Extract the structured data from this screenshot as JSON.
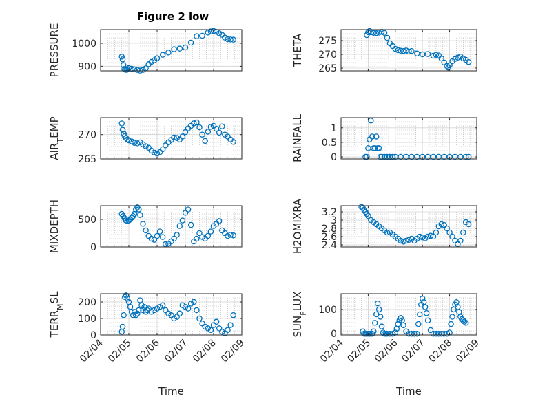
{
  "figure": {
    "title": "Figure 2 low"
  },
  "colors": {
    "marker": "#0072bd",
    "axis": "#262626",
    "grid": "#b0b0b0"
  },
  "chart_data": [
    {
      "type": "scatter",
      "ylabel": "PRESSURE",
      "ylabel_sub": "",
      "ylabel_suffix": "",
      "ylim": [
        880,
        1060
      ],
      "yticks": [
        900,
        1000
      ],
      "ytick_labels": [
        "900",
        "1000"
      ],
      "x": [
        0.75,
        0.78,
        0.81,
        0.84,
        0.88,
        0.92,
        0.96,
        1.0,
        1.1,
        1.2,
        1.3,
        1.4,
        1.5,
        1.6,
        1.7,
        1.8,
        1.9,
        2.0,
        2.2,
        2.4,
        2.6,
        2.8,
        3.0,
        3.2,
        3.4,
        3.6,
        3.8,
        3.9,
        4.0,
        4.1,
        4.2,
        4.3,
        4.4,
        4.5,
        4.6,
        4.7
      ],
      "y": [
        942,
        930,
        905,
        888,
        885,
        884,
        888,
        892,
        889,
        886,
        884,
        881,
        884,
        891,
        909,
        919,
        926,
        935,
        950,
        960,
        974,
        977,
        982,
        1003,
        1031,
        1033,
        1047,
        1052,
        1054,
        1050,
        1044,
        1037,
        1025,
        1018,
        1017,
        1016
      ]
    },
    {
      "type": "scatter",
      "ylabel": "THETA",
      "ylabel_sub": "",
      "ylabel_suffix": "",
      "ylim": [
        264,
        279
      ],
      "yticks": [
        265,
        270,
        275
      ],
      "ytick_labels": [
        "265",
        "270",
        "275"
      ],
      "x": [
        0.95,
        1.0,
        1.05,
        1.1,
        1.2,
        1.3,
        1.4,
        1.5,
        1.6,
        1.7,
        1.8,
        1.9,
        2.0,
        2.1,
        2.2,
        2.3,
        2.4,
        2.5,
        2.6,
        2.8,
        3.0,
        3.2,
        3.4,
        3.5,
        3.6,
        3.7,
        3.8,
        3.9,
        3.95,
        4.0,
        4.1,
        4.2,
        4.3,
        4.4,
        4.5,
        4.6,
        4.7
      ],
      "y": [
        277,
        278,
        278.5,
        278,
        277.8,
        277.7,
        277.9,
        278.2,
        277.8,
        276,
        274,
        273,
        272,
        271.5,
        271.3,
        271.2,
        271.4,
        271,
        271.2,
        270.3,
        270,
        270.1,
        269.5,
        269.8,
        269.6,
        268.5,
        267,
        265.8,
        265.2,
        266,
        267.5,
        268.3,
        268.8,
        269.2,
        268.5,
        268,
        267.2
      ]
    },
    {
      "type": "scatter",
      "ylabel": "AIR",
      "ylabel_sub": "T",
      "ylabel_suffix": "EMP",
      "ylim": [
        265,
        273.5
      ],
      "yticks": [
        265,
        270
      ],
      "ytick_labels": [
        "265",
        "270"
      ],
      "x": [
        0.75,
        0.78,
        0.82,
        0.86,
        0.9,
        0.95,
        1.0,
        1.1,
        1.2,
        1.3,
        1.4,
        1.5,
        1.6,
        1.7,
        1.8,
        1.9,
        2.0,
        2.1,
        2.2,
        2.3,
        2.4,
        2.5,
        2.6,
        2.7,
        2.8,
        2.9,
        3.0,
        3.1,
        3.2,
        3.3,
        3.4,
        3.5,
        3.6,
        3.7,
        3.8,
        3.9,
        4.0,
        4.1,
        4.2,
        4.3,
        4.4,
        4.5,
        4.6,
        4.7
      ],
      "y": [
        272.3,
        271,
        270.2,
        269.7,
        269.3,
        269,
        268.8,
        268.6,
        268.3,
        268.2,
        268.4,
        268,
        267.6,
        267.3,
        266.7,
        266.3,
        266.1,
        266.4,
        267,
        267.8,
        268.4,
        268.9,
        269.4,
        269.3,
        269,
        269.6,
        270.5,
        271.3,
        271.8,
        272.3,
        272.5,
        271.5,
        270,
        268.7,
        270.6,
        271.6,
        271.8,
        271.2,
        270.4,
        271.7,
        270,
        269.6,
        269,
        268.5
      ]
    },
    {
      "type": "scatter",
      "ylabel": "RAINFALL",
      "ylabel_sub": "",
      "ylabel_suffix": "",
      "ylim": [
        -0.07,
        1.35
      ],
      "yticks": [
        0,
        0.5,
        1
      ],
      "ytick_labels": [
        "0",
        "0.5",
        "1"
      ],
      "x": [
        0.9,
        0.95,
        1.0,
        1.05,
        1.1,
        1.15,
        1.2,
        1.25,
        1.3,
        1.35,
        1.4,
        1.45,
        1.5,
        1.6,
        1.7,
        1.8,
        1.9,
        2.0,
        2.2,
        2.4,
        2.6,
        2.8,
        3.0,
        3.2,
        3.4,
        3.6,
        3.8,
        4.0,
        4.2,
        4.4,
        4.6,
        4.7
      ],
      "y": [
        0,
        0,
        0.3,
        0.6,
        1.25,
        0.7,
        0.3,
        0.3,
        0.7,
        0.3,
        0.3,
        0,
        0,
        0,
        0,
        0,
        0,
        0,
        0,
        0,
        0,
        0,
        0,
        0,
        0,
        0,
        0,
        0,
        0,
        0,
        0,
        0
      ]
    },
    {
      "type": "scatter",
      "ylabel": "MIXDEPTH",
      "ylabel_sub": "",
      "ylabel_suffix": "",
      "ylim": [
        0,
        750
      ],
      "yticks": [
        0,
        500
      ],
      "ytick_labels": [
        "0",
        "500"
      ],
      "x": [
        0.75,
        0.8,
        0.85,
        0.9,
        0.95,
        1.0,
        1.05,
        1.1,
        1.15,
        1.2,
        1.25,
        1.3,
        1.35,
        1.4,
        1.5,
        1.6,
        1.7,
        1.8,
        1.9,
        2.0,
        2.1,
        2.2,
        2.3,
        2.4,
        2.5,
        2.6,
        2.7,
        2.8,
        2.9,
        3.0,
        3.1,
        3.2,
        3.3,
        3.4,
        3.5,
        3.6,
        3.7,
        3.8,
        3.9,
        4.0,
        4.1,
        4.2,
        4.3,
        4.4,
        4.5,
        4.6,
        4.7
      ],
      "y": [
        600,
        560,
        520,
        480,
        470,
        480,
        500,
        530,
        560,
        600,
        680,
        720,
        680,
        580,
        420,
        300,
        200,
        150,
        130,
        200,
        280,
        180,
        50,
        60,
        100,
        150,
        220,
        380,
        480,
        620,
        680,
        400,
        100,
        150,
        250,
        180,
        150,
        200,
        280,
        380,
        420,
        470,
        300,
        250,
        200,
        220,
        210
      ]
    },
    {
      "type": "scatter",
      "ylabel": "H2OMIXRA",
      "ylabel_sub": "",
      "ylabel_suffix": "",
      "ylim": [
        2.35,
        3.35
      ],
      "yticks": [
        2.4,
        2.6,
        2.8,
        3,
        3.2
      ],
      "ytick_labels": [
        "2.4",
        "2.6",
        "2.8",
        "3",
        "3.2"
      ],
      "x": [
        0.75,
        0.8,
        0.85,
        0.9,
        0.95,
        1.0,
        1.1,
        1.2,
        1.3,
        1.4,
        1.5,
        1.6,
        1.7,
        1.8,
        1.9,
        2.0,
        2.1,
        2.2,
        2.3,
        2.4,
        2.5,
        2.6,
        2.7,
        2.8,
        2.9,
        3.0,
        3.1,
        3.2,
        3.3,
        3.4,
        3.5,
        3.6,
        3.7,
        3.8,
        3.9,
        4.0,
        4.1,
        4.2,
        4.3,
        4.4,
        4.5,
        4.6,
        4.7
      ],
      "y": [
        3.32,
        3.3,
        3.25,
        3.2,
        3.15,
        3.1,
        3.0,
        2.95,
        2.9,
        2.85,
        2.8,
        2.75,
        2.7,
        2.7,
        2.65,
        2.6,
        2.55,
        2.5,
        2.48,
        2.5,
        2.52,
        2.55,
        2.5,
        2.55,
        2.6,
        2.58,
        2.56,
        2.6,
        2.62,
        2.6,
        2.7,
        2.85,
        2.9,
        2.88,
        2.8,
        2.7,
        2.6,
        2.5,
        2.42,
        2.5,
        2.7,
        2.95,
        2.9
      ]
    },
    {
      "type": "scatter",
      "ylabel": "TERR",
      "ylabel_sub": "M",
      "ylabel_suffix": "SL",
      "ylim": [
        0,
        250
      ],
      "yticks": [
        0,
        100,
        200
      ],
      "ytick_labels": [
        "0",
        "100",
        "200"
      ],
      "x": [
        0.75,
        0.78,
        0.82,
        0.86,
        0.9,
        0.95,
        1.0,
        1.05,
        1.1,
        1.15,
        1.2,
        1.25,
        1.3,
        1.35,
        1.4,
        1.45,
        1.5,
        1.55,
        1.6,
        1.65,
        1.7,
        1.8,
        1.9,
        2.0,
        2.1,
        2.2,
        2.3,
        2.4,
        2.5,
        2.6,
        2.7,
        2.8,
        2.9,
        3.0,
        3.1,
        3.2,
        3.3,
        3.4,
        3.5,
        3.6,
        3.7,
        3.8,
        3.9,
        4.0,
        4.1,
        4.2,
        4.3,
        4.4,
        4.5,
        4.6,
        4.7
      ],
      "y": [
        20,
        50,
        120,
        230,
        240,
        220,
        200,
        170,
        140,
        120,
        140,
        120,
        130,
        150,
        210,
        180,
        150,
        170,
        140,
        150,
        160,
        140,
        150,
        160,
        170,
        180,
        150,
        130,
        120,
        100,
        110,
        130,
        180,
        170,
        160,
        190,
        200,
        150,
        100,
        70,
        50,
        40,
        30,
        60,
        80,
        40,
        20,
        10,
        30,
        60,
        120
      ]
    },
    {
      "type": "scatter",
      "ylabel": "SUN",
      "ylabel_sub": "F",
      "ylabel_suffix": "LUX",
      "ylim": [
        -5,
        165
      ],
      "yticks": [
        0,
        100
      ],
      "ytick_labels": [
        "0",
        "100"
      ],
      "x": [
        0.8,
        0.85,
        0.9,
        0.95,
        1.0,
        1.05,
        1.1,
        1.15,
        1.2,
        1.25,
        1.3,
        1.35,
        1.4,
        1.45,
        1.5,
        1.55,
        1.6,
        1.65,
        1.7,
        1.8,
        1.9,
        2.0,
        2.05,
        2.1,
        2.15,
        2.2,
        2.25,
        2.3,
        2.4,
        2.5,
        2.6,
        2.7,
        2.8,
        2.85,
        2.9,
        2.95,
        3.0,
        3.05,
        3.1,
        3.15,
        3.2,
        3.3,
        3.4,
        3.5,
        3.6,
        3.7,
        3.8,
        3.9,
        4.0,
        4.05,
        4.1,
        4.15,
        4.2,
        4.25,
        4.3,
        4.35,
        4.4,
        4.45,
        4.5,
        4.55,
        4.6
      ],
      "y": [
        10,
        0,
        0,
        0,
        0,
        0,
        0,
        0,
        10,
        45,
        80,
        125,
        100,
        70,
        30,
        5,
        0,
        0,
        0,
        0,
        0,
        5,
        20,
        40,
        55,
        65,
        55,
        35,
        10,
        0,
        0,
        0,
        0,
        40,
        80,
        120,
        145,
        130,
        110,
        85,
        55,
        15,
        0,
        0,
        0,
        0,
        0,
        0,
        5,
        40,
        70,
        100,
        120,
        130,
        110,
        90,
        70,
        60,
        55,
        50,
        45
      ]
    }
  ],
  "shared_axis": {
    "xlim": [
      0,
      5
    ],
    "xtick_labels": [
      "02/04",
      "02/05",
      "02/06",
      "02/07",
      "02/08",
      "02/09"
    ],
    "xlabel": "Time"
  }
}
